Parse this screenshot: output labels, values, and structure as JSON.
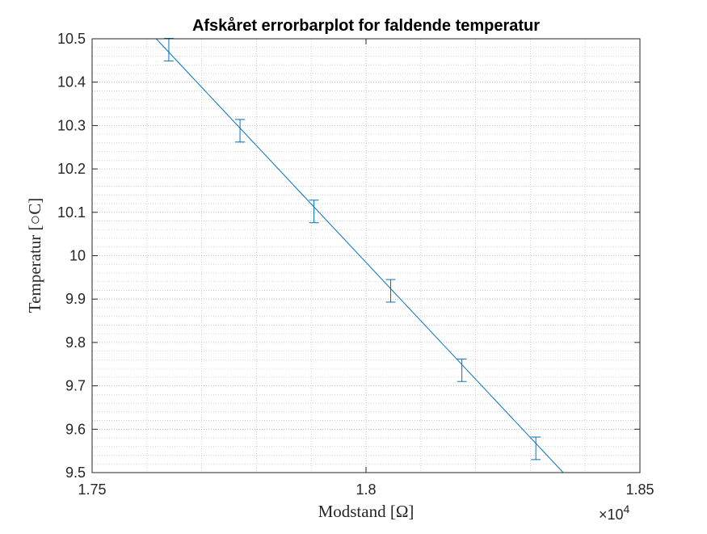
{
  "chart_data": {
    "type": "scatter",
    "title": "Afskåret errorbarplot for faldende temperatur",
    "xlabel": "Modstand [Ω]",
    "ylabel": "Temperatur [○C]",
    "x_exponent_label": "×10",
    "x_exponent_power": "4",
    "x_scale": 10000,
    "xlim": [
      17500,
      18500
    ],
    "ylim": [
      9.5,
      10.5
    ],
    "x_ticks": [
      17500,
      18000,
      18500
    ],
    "x_tick_labels": [
      "1.75",
      "1.8",
      "1.85"
    ],
    "y_ticks": [
      9.5,
      9.6,
      9.7,
      9.8,
      9.9,
      10.0,
      10.1,
      10.2,
      10.3,
      10.4,
      10.5
    ],
    "y_tick_labels": [
      "9.5",
      "9.6",
      "9.7",
      "9.8",
      "9.9",
      "10",
      "10.1",
      "10.2",
      "10.3",
      "10.4",
      "10.5"
    ],
    "grid": true,
    "minor_grid": true,
    "color": "#0072BD",
    "series": [
      {
        "type": "errorbar",
        "x": [
          17640,
          17770,
          17905,
          18045,
          18175,
          18310
        ],
        "y": [
          10.475,
          10.288,
          10.102,
          9.919,
          9.736,
          9.556
        ],
        "error": [
          0.026,
          0.026,
          0.026,
          0.026,
          0.026,
          0.026
        ]
      },
      {
        "type": "fit-line",
        "x": [
          17617,
          18360
        ],
        "y": [
          10.5,
          9.5
        ]
      }
    ]
  }
}
